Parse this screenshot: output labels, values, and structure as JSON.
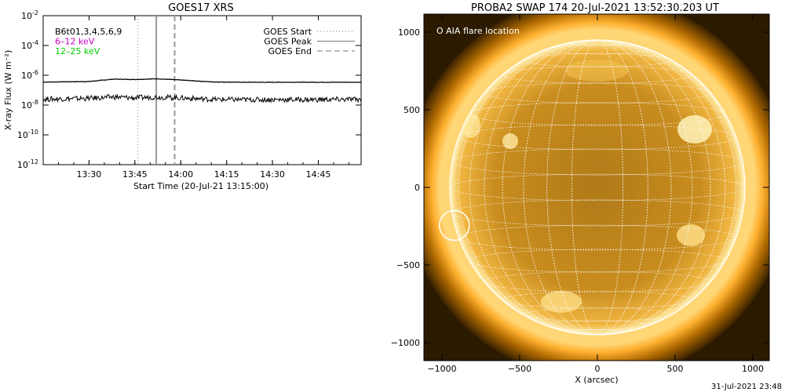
{
  "chart_data": [
    {
      "type": "line",
      "title": "GOES17 XRS",
      "xlabel": "Start Time (20-Jul-21 13:15:00)",
      "ylabel": "X-ray Flux (W m⁻²)",
      "yscale": "log",
      "ylim": [
        1e-12,
        0.01
      ],
      "xlim": [
        "13:15",
        "14:59"
      ],
      "x_ticks": [
        "13:30",
        "13:45",
        "14:00",
        "14:15",
        "14:30",
        "14:45"
      ],
      "y_ticks": [
        {
          "base": "10",
          "exp": "-2"
        },
        {
          "base": "10",
          "exp": "-4"
        },
        {
          "base": "10",
          "exp": "-6"
        },
        {
          "base": "10",
          "exp": "-8"
        },
        {
          "base": "10",
          "exp": "-10"
        },
        {
          "base": "10",
          "exp": "-12"
        }
      ],
      "legend_left": [
        {
          "label": "B6t01,3,4,5,6,9",
          "color": "#000000"
        },
        {
          "label": "6–12 keV",
          "color": "#cc00cc"
        },
        {
          "label": "12–25 keV",
          "color": "#00cc00"
        }
      ],
      "legend_right": [
        {
          "label": "GOES Start",
          "style": "dotted"
        },
        {
          "label": "GOES Peak",
          "style": "solid"
        },
        {
          "label": "GOES End",
          "style": "dashed"
        }
      ],
      "series": [
        {
          "name": "high",
          "x": [
            "13:15",
            "13:30",
            "13:38",
            "13:45",
            "13:52",
            "14:00",
            "14:10",
            "14:20",
            "14:40",
            "14:59"
          ],
          "values": [
            3.5e-07,
            3.8e-07,
            5.5e-07,
            5.2e-07,
            5.8e-07,
            4.8e-07,
            3.6e-07,
            3.4e-07,
            3.4e-07,
            3.4e-07
          ]
        },
        {
          "name": "low",
          "x": [
            "13:15",
            "13:30",
            "13:38",
            "13:45",
            "13:52",
            "14:00",
            "14:10",
            "14:20",
            "14:40",
            "14:59"
          ],
          "values": [
            2.5e-08,
            2.8e-08,
            3.5e-08,
            3e-08,
            3.5e-08,
            3e-08,
            2.4e-08,
            2.3e-08,
            2.3e-08,
            2.4e-08
          ]
        }
      ],
      "event_lines": {
        "start": "13:46",
        "peak": "13:52",
        "end": "13:58"
      }
    },
    {
      "type": "image",
      "title": "PROBA2 SWAP 174 20-Jul-2021 13:52:30.203 UT",
      "xlabel": "X (arcsec)",
      "xlim": [
        -1100,
        1100
      ],
      "ylim": [
        -1100,
        1100
      ],
      "x_ticks": [
        "−1000",
        "−500",
        "0",
        "500",
        "1000"
      ],
      "y_ticks": [
        "1000",
        "500",
        "0",
        "−500",
        "−1000"
      ],
      "legend": "O AIA flare location",
      "flare_location": {
        "x": -920,
        "y": -245
      }
    }
  ],
  "footer": {
    "timestamp": "31-Jul-2021 23:48"
  }
}
